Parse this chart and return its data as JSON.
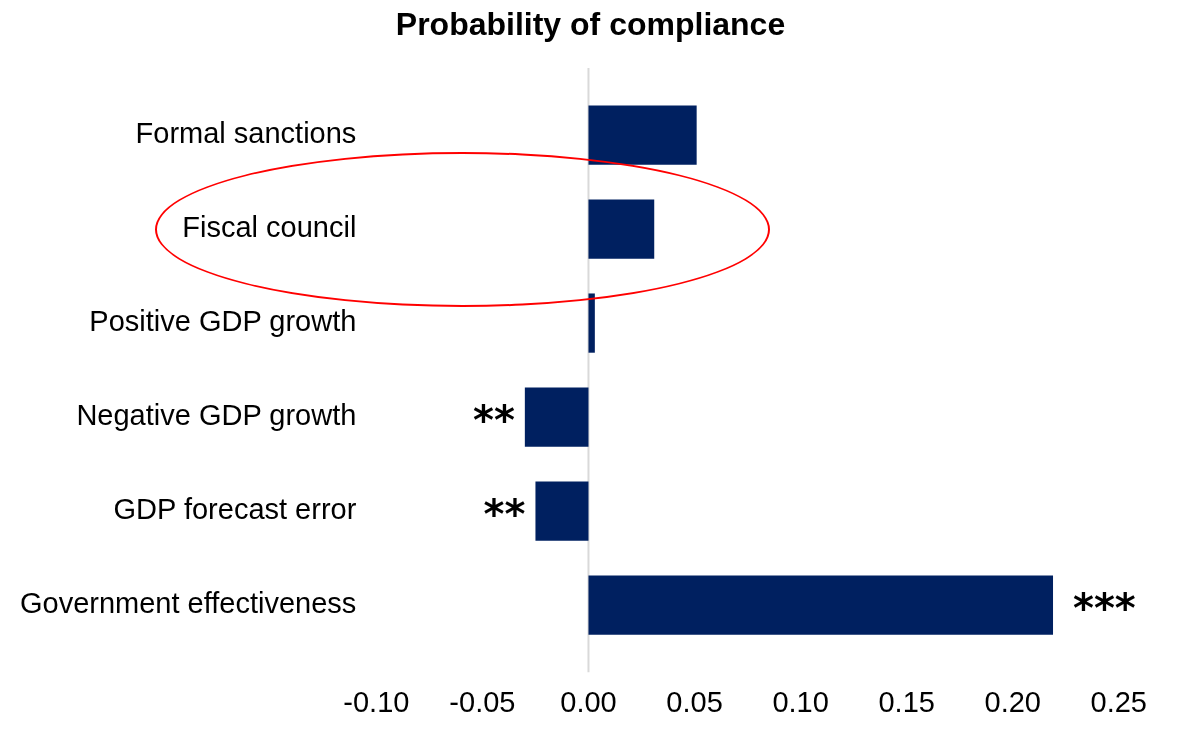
{
  "chart_data": {
    "type": "bar",
    "orientation": "horizontal",
    "title": "Probability of compliance",
    "categories": [
      "Formal sanctions",
      "Fiscal council",
      "Positive GDP growth",
      "Negative GDP growth",
      "GDP forecast error",
      "Government effectiveness"
    ],
    "values": [
      0.051,
      0.031,
      0.003,
      -0.03,
      -0.025,
      0.219
    ],
    "color": "#002060",
    "xlim": [
      -0.1,
      0.25
    ],
    "xticks": [
      {
        "value": -0.1,
        "label": "-0.10"
      },
      {
        "value": -0.05,
        "label": "-0.05"
      },
      {
        "value": 0,
        "label": "0.00"
      },
      {
        "value": 0.05,
        "label": "0.05"
      },
      {
        "value": 0.1,
        "label": "0.10"
      },
      {
        "value": 0.15,
        "label": "0.15"
      },
      {
        "value": 0.2,
        "label": "0.20"
      },
      {
        "value": 0.25,
        "label": "0.25"
      }
    ],
    "grid": false,
    "legend": false,
    "ref_lines": [
      {
        "axis": "x",
        "value": 0,
        "color": "#d9d9d9"
      }
    ],
    "annotations": [
      {
        "text": "**",
        "x": -0.03,
        "y": "Negative GDP growth"
      },
      {
        "text": "**",
        "x": -0.025,
        "y": "GDP forecast error"
      },
      {
        "text": "***",
        "x": 0.219,
        "y": "Government effectiveness"
      }
    ]
  }
}
